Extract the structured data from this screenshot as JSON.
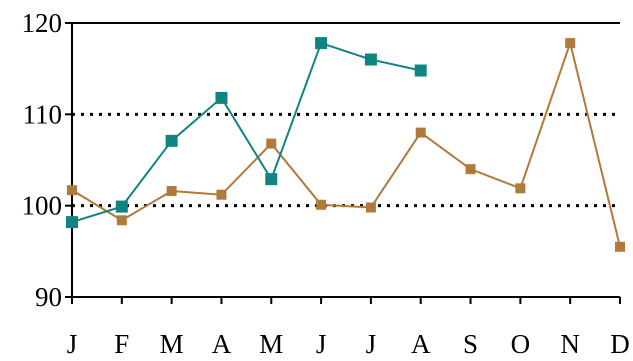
{
  "chart_data": {
    "type": "line",
    "title": "",
    "xlabel": "",
    "ylabel": "",
    "categories": [
      "J",
      "F",
      "M",
      "A",
      "M",
      "J",
      "J",
      "A",
      "S",
      "O",
      "N",
      "D"
    ],
    "ylim": [
      90,
      120
    ],
    "yticks": [
      90,
      100,
      110,
      120
    ],
    "grid": "dotted horizontal lines at 100 and 110",
    "legend": "none",
    "series": [
      {
        "color": "#b07a3a",
        "marker": "square",
        "values": [
          101.7,
          98.4,
          101.6,
          101.2,
          106.8,
          100.1,
          99.8,
          108.0,
          104.0,
          101.9,
          117.8,
          95.5
        ]
      },
      {
        "color": "#0f8480",
        "marker": "square",
        "values": [
          98.2,
          99.9,
          107.1,
          111.8,
          102.9,
          117.8,
          116.0,
          114.8,
          null,
          null,
          null,
          null
        ]
      }
    ]
  }
}
